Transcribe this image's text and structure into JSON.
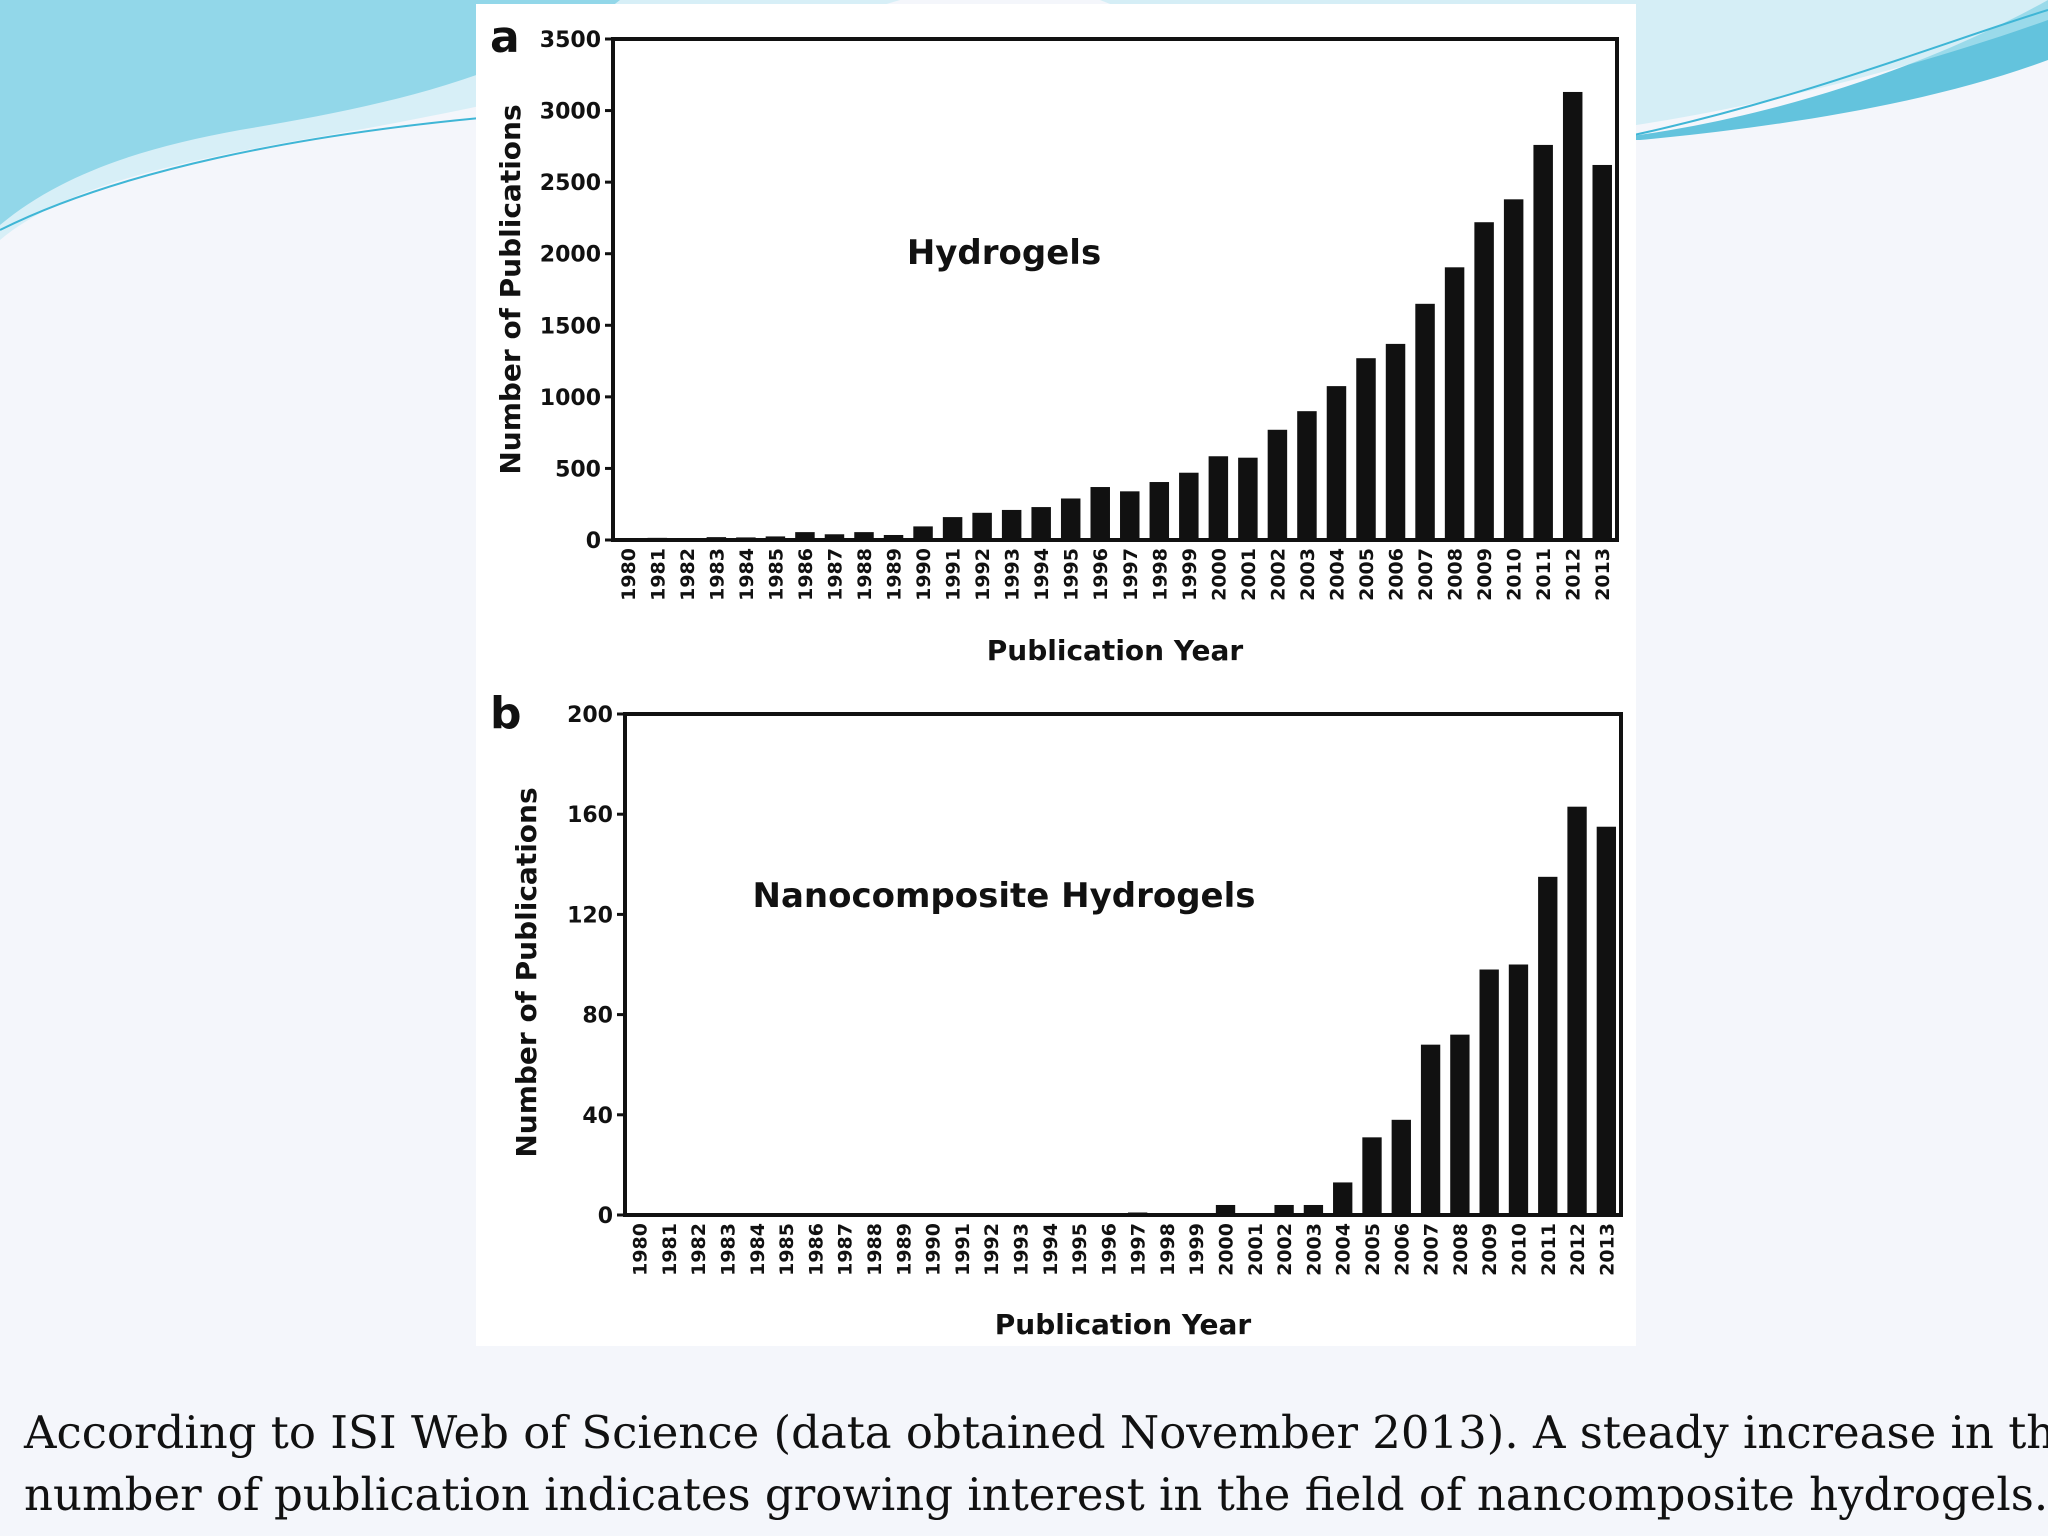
{
  "caption": {
    "line1": "According to ISI Web of Science (data obtained November 2013). A steady increase in the",
    "line2": "number of publication indicates growing interest in the field of nancomposite hydrogels."
  },
  "colors": {
    "bars": "#111111",
    "accent": "#3fb6d6",
    "accent_light": "#bfeaf4"
  },
  "chart_data": [
    {
      "type": "bar",
      "panel": "a",
      "annotation": "Hydrogels",
      "xlabel": "Publication Year",
      "ylabel": "Number of Publications",
      "ylim": [
        0,
        3500
      ],
      "yticks": [
        0,
        500,
        1000,
        1500,
        2000,
        2500,
        3000,
        3500
      ],
      "categories": [
        "1980",
        "1981",
        "1982",
        "1983",
        "1984",
        "1985",
        "1986",
        "1987",
        "1988",
        "1989",
        "1990",
        "1991",
        "1992",
        "1993",
        "1994",
        "1995",
        "1996",
        "1997",
        "1998",
        "1999",
        "2000",
        "2001",
        "2002",
        "2003",
        "2004",
        "2005",
        "2006",
        "2007",
        "2008",
        "2009",
        "2010",
        "2011",
        "2012",
        "2013"
      ],
      "values": [
        10,
        15,
        12,
        20,
        18,
        25,
        55,
        40,
        55,
        35,
        95,
        160,
        190,
        210,
        230,
        290,
        370,
        340,
        405,
        470,
        585,
        575,
        770,
        900,
        1075,
        1270,
        1370,
        1650,
        1905,
        2220,
        2380,
        2760,
        3130,
        2620
      ]
    },
    {
      "type": "bar",
      "panel": "b",
      "annotation": "Nanocomposite Hydrogels",
      "xlabel": "Publication Year",
      "ylabel": "Number of Publications",
      "ylim": [
        0,
        200
      ],
      "yticks": [
        0,
        40,
        80,
        120,
        160,
        200
      ],
      "categories": [
        "1980",
        "1981",
        "1982",
        "1983",
        "1984",
        "1985",
        "1986",
        "1987",
        "1988",
        "1989",
        "1990",
        "1991",
        "1992",
        "1993",
        "1994",
        "1995",
        "1996",
        "1997",
        "1998",
        "1999",
        "2000",
        "2001",
        "2002",
        "2003",
        "2004",
        "2005",
        "2006",
        "2007",
        "2008",
        "2009",
        "2010",
        "2011",
        "2012",
        "2013"
      ],
      "values": [
        0,
        0,
        0,
        0,
        0,
        0,
        0,
        0,
        0,
        0,
        0,
        0,
        0,
        0,
        0,
        0,
        0,
        1,
        0,
        0,
        4,
        0,
        4,
        4,
        13,
        31,
        38,
        68,
        72,
        98,
        100,
        135,
        163,
        155
      ]
    }
  ]
}
